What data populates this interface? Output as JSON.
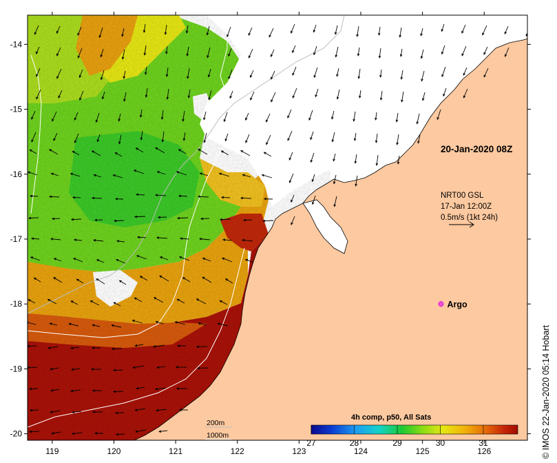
{
  "map": {
    "x_ticks": [
      "119",
      "120",
      "121",
      "122",
      "123",
      "124",
      "125",
      "126"
    ],
    "y_ticks": [
      "-14",
      "-15",
      "-16",
      "-17",
      "-18",
      "-19",
      "-20"
    ],
    "x_range": [
      118.6,
      126.7
    ],
    "y_range": [
      -20.1,
      -13.55
    ],
    "date_label": "20-Jan-2020 08Z",
    "current_legend": {
      "line1": "NRT00 GSL",
      "line2": "17-Jan 12:00Z",
      "line3": "0.5m/s (1kt 24h)"
    },
    "argo": {
      "label": "Argo",
      "lon": 125.3,
      "lat": -18.0,
      "color": "#e020e0"
    },
    "isobath_labels": [
      "200m",
      "1000m"
    ],
    "colorbar": {
      "title": "4h comp, p50, All Sats",
      "ticks": [
        "27",
        "28",
        "29",
        "30",
        "31"
      ],
      "range": [
        27,
        31.8
      ]
    },
    "credit": "© IMOS 22-Jan-2020 05:14 Hobart",
    "colors": {
      "land": "#fcc9a0",
      "sea_nodata": "#ffffff",
      "coast": "#000000",
      "isobath": "#bfbfbf"
    }
  }
}
